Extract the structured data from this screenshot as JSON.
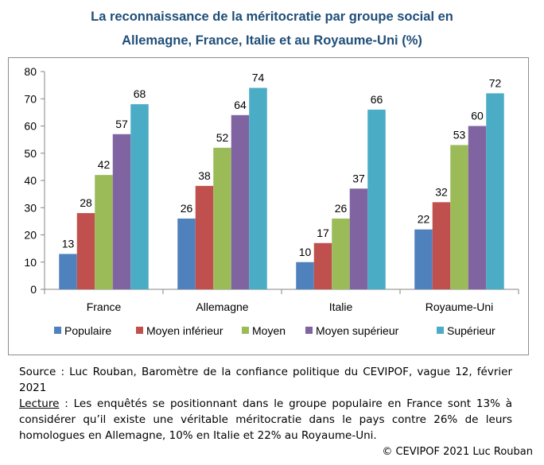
{
  "title_line1": "La reconnaissance de la méritocratie par groupe social en",
  "title_line2": "Allemagne, France, Italie et au Royaume-Uni (%)",
  "chart_data": {
    "type": "bar",
    "title": "La reconnaissance de la méritocratie par groupe social en Allemagne, France, Italie et au Royaume-Uni (%)",
    "categories": [
      "France",
      "Allemagne",
      "Italie",
      "Royaume-Uni"
    ],
    "series": [
      {
        "name": "Populaire",
        "values": [
          13,
          26,
          10,
          22
        ],
        "color": "#4f81bd"
      },
      {
        "name": "Moyen inférieur",
        "values": [
          28,
          38,
          17,
          32
        ],
        "color": "#c0504d"
      },
      {
        "name": "Moyen",
        "values": [
          42,
          52,
          26,
          53
        ],
        "color": "#9bbb59"
      },
      {
        "name": "Moyen supérieur",
        "values": [
          57,
          64,
          37,
          60
        ],
        "color": "#8064a2"
      },
      {
        "name": "Supérieur",
        "values": [
          68,
          74,
          66,
          72
        ],
        "color": "#4bacc6"
      }
    ],
    "ylim": [
      0,
      80
    ],
    "yticks": [
      0,
      10,
      20,
      30,
      40,
      50,
      60,
      70,
      80
    ],
    "grid": false,
    "legend": "bottom",
    "data_labels": true
  },
  "source": {
    "text": "Source : Luc Rouban, Baromètre de la confiance politique du CEVIPOF, vague 12, février 2021",
    "lecture_label": "Lecture",
    "lecture_text": " : Les enquêtés se positionnant dans le groupe populaire en France sont 13% à considérer qu’il existe une véritable méritocratie dans le pays contre 26% de leurs homologues en Allemagne, 10% en Italie et 22% au Royaume-Uni."
  },
  "copyright": "© CEVIPOF 2021 Luc Rouban"
}
